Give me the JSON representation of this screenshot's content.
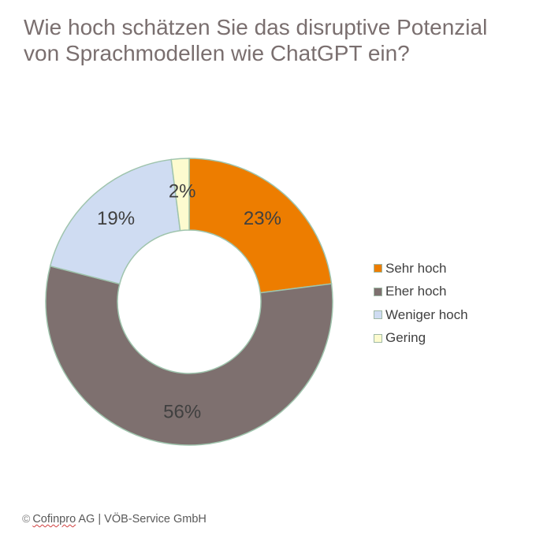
{
  "chart_data": {
    "type": "pie",
    "title": "Wie hoch schätzen Sie das disruptive Potenzial von Sprachmodellen wie ChatGPT ein?",
    "categories": [
      "Sehr hoch",
      "Eher hoch",
      "Weniger hoch",
      "Gering"
    ],
    "values": [
      23,
      56,
      19,
      2
    ],
    "value_labels": [
      "23%",
      "56%",
      "19%",
      "2%"
    ],
    "colors": [
      "#ed7d00",
      "#7e706f",
      "#cfdcf2",
      "#fdfbcf"
    ],
    "donut": true,
    "legend_placement": "right"
  },
  "source": {
    "copyright_symbol": "©",
    "company": "Cofinpro",
    "rest": " AG | VÖB-Service GmbH"
  }
}
